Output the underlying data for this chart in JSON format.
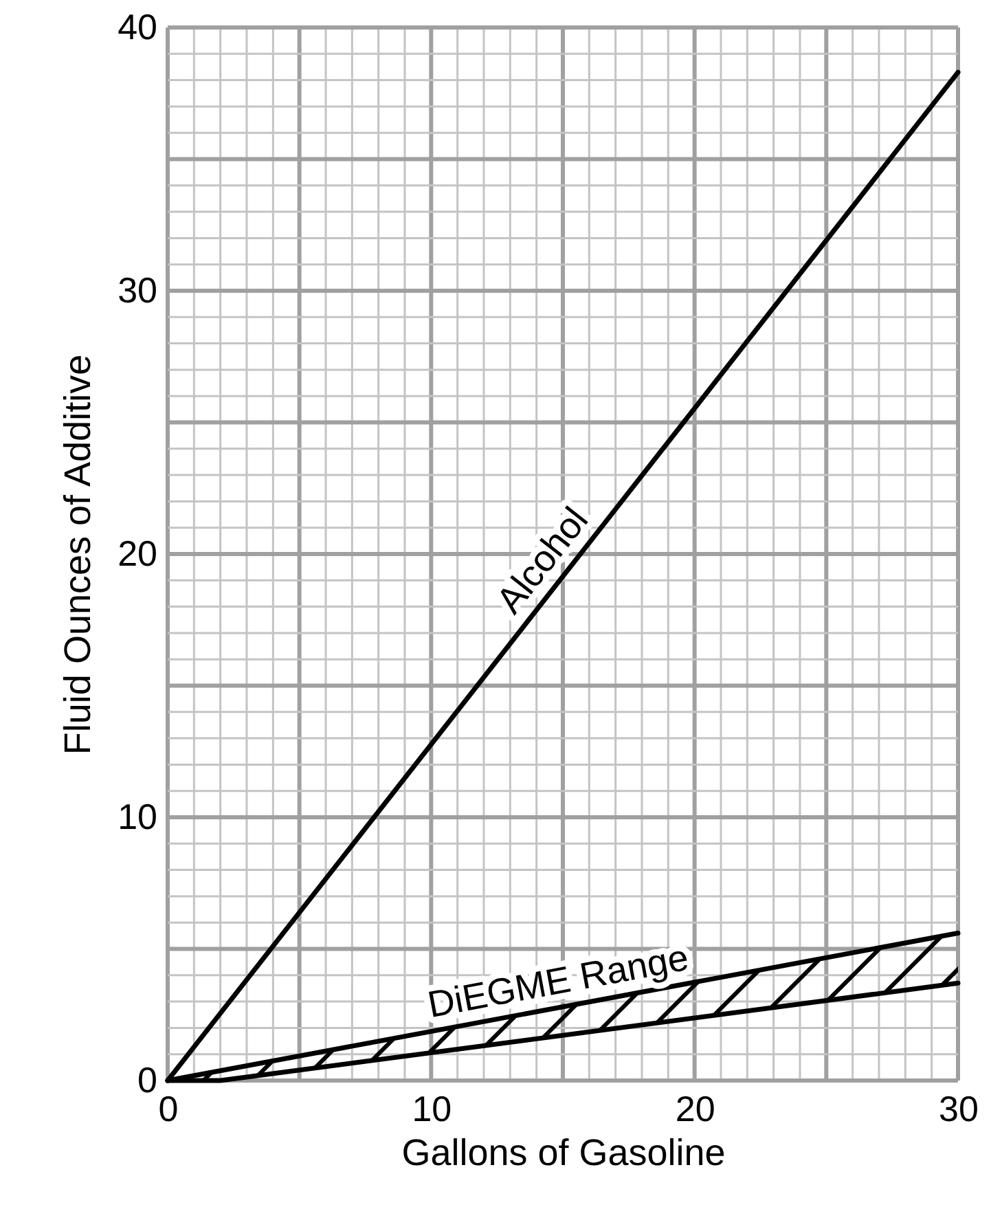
{
  "chart_data": {
    "type": "line",
    "xlabel": "Gallons of Gasoline",
    "ylabel": "Fluid Ounces of Additive",
    "xlim": [
      0,
      30
    ],
    "ylim": [
      0,
      40
    ],
    "xticks": [
      0,
      {
        "value": 1,
        "label": null
      },
      {
        "value": 2,
        "label": null
      },
      {
        "value": 3,
        "label": null
      },
      {
        "value": 4,
        "label": null
      },
      {
        "value": 5,
        "label": null
      },
      {
        "value": 6,
        "label": null
      },
      {
        "value": 7,
        "label": null
      },
      {
        "value": 8,
        "label": null
      },
      {
        "value": 9,
        "label": null
      },
      10,
      {
        "value": 11,
        "label": null
      },
      {
        "value": 12,
        "label": null
      },
      {
        "value": 13,
        "label": null
      },
      {
        "value": 14,
        "label": null
      },
      {
        "value": 15,
        "label": null
      },
      {
        "value": 16,
        "label": null
      },
      {
        "value": 17,
        "label": null
      },
      {
        "value": 18,
        "label": null
      },
      {
        "value": 19,
        "label": null
      },
      20,
      {
        "value": 21,
        "label": null
      },
      {
        "value": 22,
        "label": null
      },
      {
        "value": 23,
        "label": null
      },
      {
        "value": 24,
        "label": null
      },
      {
        "value": 25,
        "label": null
      },
      {
        "value": 26,
        "label": null
      },
      {
        "value": 27,
        "label": null
      },
      {
        "value": 28,
        "label": null
      },
      {
        "value": 29,
        "label": null
      },
      30
    ],
    "yticks": [
      0,
      {
        "value": 1,
        "label": null
      },
      {
        "value": 2,
        "label": null
      },
      {
        "value": 3,
        "label": null
      },
      {
        "value": 4,
        "label": null
      },
      {
        "value": 5,
        "label": null
      },
      {
        "value": 6,
        "label": null
      },
      {
        "value": 7,
        "label": null
      },
      {
        "value": 8,
        "label": null
      },
      {
        "value": 9,
        "label": null
      },
      10,
      {
        "value": 11,
        "label": null
      },
      {
        "value": 12,
        "label": null
      },
      {
        "value": 13,
        "label": null
      },
      {
        "value": 14,
        "label": null
      },
      {
        "value": 15,
        "label": null
      },
      {
        "value": 16,
        "label": null
      },
      {
        "value": 17,
        "label": null
      },
      {
        "value": 18,
        "label": null
      },
      {
        "value": 19,
        "label": null
      },
      20,
      {
        "value": 21,
        "label": null
      },
      {
        "value": 22,
        "label": null
      },
      {
        "value": 23,
        "label": null
      },
      {
        "value": 24,
        "label": null
      },
      {
        "value": 25,
        "label": null
      },
      {
        "value": 26,
        "label": null
      },
      {
        "value": 27,
        "label": null
      },
      {
        "value": 28,
        "label": null
      },
      {
        "value": 29,
        "label": null
      },
      30,
      {
        "value": 31,
        "label": null
      },
      {
        "value": 32,
        "label": null
      },
      {
        "value": 33,
        "label": null
      },
      {
        "value": 34,
        "label": null
      },
      {
        "value": 35,
        "label": null
      },
      {
        "value": 36,
        "label": null
      },
      {
        "value": 37,
        "label": null
      },
      {
        "value": 38,
        "label": null
      },
      {
        "value": 39,
        "label": null
      },
      40
    ],
    "grid": true,
    "series": [
      {
        "name": "Alcohol",
        "color": "#000000",
        "x": [
          0,
          30
        ],
        "values": [
          0,
          38.3
        ]
      },
      {
        "name": "DiEGME Range",
        "color": "#000000",
        "x": [
          0,
          30
        ],
        "values": [
          0,
          5.6
        ]
      },
      {
        "color": "#000000",
        "x": [
          0,
          2,
          30
        ],
        "values": [
          0,
          0,
          3.7
        ]
      }
    ]
  }
}
